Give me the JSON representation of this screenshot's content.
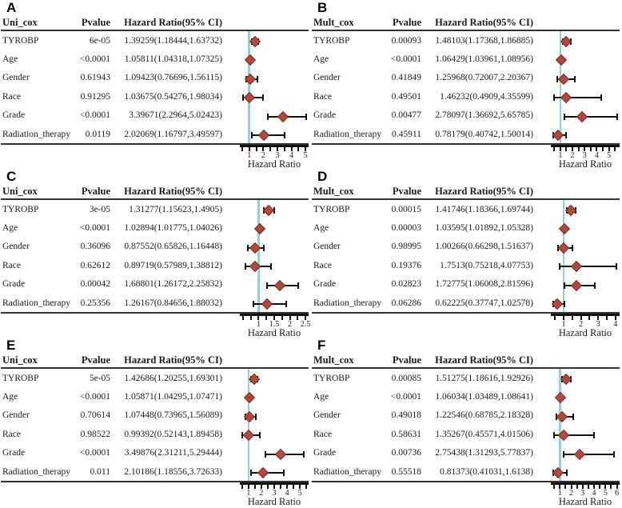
{
  "figure": {
    "axis_title": "Hazard Ratio",
    "colors": {
      "diamond_fill": "#b0493c",
      "diamond_border": "#7c2d26",
      "ci_line": "#111111",
      "reference_line": "#92d2d6",
      "rule": "#333333",
      "axis": "#111111"
    },
    "chart_data": [
      {
        "type": "forest",
        "panel": "A",
        "model_header": "Uni_cox",
        "pvalue_header": "Pvalue",
        "hr_header": "Hazard Ratio(95% CI)",
        "xlabel": "Hazard Ratio",
        "axis": {
          "min": 0.45,
          "max": 5.1,
          "tick_start": 0.5,
          "tick_end": 5.0,
          "tick_step": 0.5,
          "major_labels": [
            "1",
            "2",
            "3",
            "4",
            "5"
          ],
          "reference": 1
        },
        "rows": [
          {
            "variable": "TYROBP",
            "pvalue": "6e-05",
            "hr_text": "1.39259(1.18444,1.63732)",
            "hr": 1.39259,
            "low": 1.18444,
            "high": 1.63732
          },
          {
            "variable": "Age",
            "pvalue": "<0.0001",
            "hr_text": "1.05811(1.04318,1.07325)",
            "hr": 1.05811,
            "low": 1.04318,
            "high": 1.07325
          },
          {
            "variable": "Gender",
            "pvalue": "0.61943",
            "hr_text": "1.09423(0.76696,1.56115)",
            "hr": 1.09423,
            "low": 0.76696,
            "high": 1.56115
          },
          {
            "variable": "Race",
            "pvalue": "0.91295",
            "hr_text": "1.03675(0.54276,1.98034)",
            "hr": 1.03675,
            "low": 0.54276,
            "high": 1.98034
          },
          {
            "variable": "Grade",
            "pvalue": "<0.0001",
            "hr_text": "3.39671(2.2964,5.02423)",
            "hr": 3.39671,
            "low": 2.2964,
            "high": 5.02423
          },
          {
            "variable": "Radiation_therapy",
            "pvalue": "0.0119",
            "hr_text": "2.02069(1.16797,3.49597)",
            "hr": 2.02069,
            "low": 1.16797,
            "high": 3.49597
          }
        ]
      },
      {
        "type": "forest",
        "panel": "B",
        "model_header": "Mult_cox",
        "pvalue_header": "Pvalue",
        "hr_header": "Hazard Ratio(95% CI)",
        "xlabel": "Hazard Ratio",
        "axis": {
          "min": 0.35,
          "max": 5.75,
          "tick_start": 0.5,
          "tick_end": 5.5,
          "tick_step": 0.5,
          "major_labels": [
            "1",
            "2",
            "3",
            "4",
            "5"
          ],
          "reference": 1
        },
        "rows": [
          {
            "variable": "TYROBP",
            "pvalue": "0.00093",
            "hr_text": "1.48103(1.17368,1.86885)",
            "hr": 1.48103,
            "low": 1.17368,
            "high": 1.86885
          },
          {
            "variable": "Age",
            "pvalue": "<0.0001",
            "hr_text": "1.06429(1.03961,1.08956)",
            "hr": 1.06429,
            "low": 1.03961,
            "high": 1.08956
          },
          {
            "variable": "Gender",
            "pvalue": "0.41849",
            "hr_text": "1.25968(0.72007,2.20367)",
            "hr": 1.25968,
            "low": 0.72007,
            "high": 2.20367
          },
          {
            "variable": "Race",
            "pvalue": "0.49501",
            "hr_text": "1.46232(0.4909,4.35599)",
            "hr": 1.46232,
            "low": 0.4909,
            "high": 4.35599
          },
          {
            "variable": "Grade",
            "pvalue": "0.00477",
            "hr_text": "2.78097(1.36692,5.65785)",
            "hr": 2.78097,
            "low": 1.36692,
            "high": 5.65785
          },
          {
            "variable": "Radiation_therapy",
            "pvalue": "0.45911",
            "hr_text": "0.78179(0.40742,1.50014)",
            "hr": 0.78179,
            "low": 0.40742,
            "high": 1.50014
          }
        ]
      },
      {
        "type": "forest",
        "panel": "C",
        "model_header": "Uni_cox",
        "pvalue_header": "Pvalue",
        "hr_header": "Hazard Ratio(95% CI)",
        "xlabel": "Hazard Ratio",
        "axis": {
          "min": 0.45,
          "max": 2.55,
          "tick_start": 0.5,
          "tick_end": 2.5,
          "tick_step": 0.25,
          "major_labels": [
            "1",
            "1.5",
            "2",
            "2.5"
          ],
          "reference": 1
        },
        "rows": [
          {
            "variable": "TYROBP",
            "pvalue": "3e-05",
            "hr_text": "1.31277(1.15623,1.4905)",
            "hr": 1.31277,
            "low": 1.15623,
            "high": 1.4905
          },
          {
            "variable": "Age",
            "pvalue": "<0.0001",
            "hr_text": "1.02894(1.01775,1.04026)",
            "hr": 1.02894,
            "low": 1.01775,
            "high": 1.04026
          },
          {
            "variable": "Gender",
            "pvalue": "0.36096",
            "hr_text": "0.87552(0.65826,1.16448)",
            "hr": 0.87552,
            "low": 0.65826,
            "high": 1.16448
          },
          {
            "variable": "Race",
            "pvalue": "0.62612",
            "hr_text": "0.89719(0.57989,1.38812)",
            "hr": 0.89719,
            "low": 0.57989,
            "high": 1.38812
          },
          {
            "variable": "Grade",
            "pvalue": "0.00042",
            "hr_text": "1.68801(1.26172,2.25832)",
            "hr": 1.68801,
            "low": 1.26172,
            "high": 2.25832
          },
          {
            "variable": "Radiation_therapy",
            "pvalue": "0.25356",
            "hr_text": "1.26167(0.84656,1.88032)",
            "hr": 1.26167,
            "low": 0.84656,
            "high": 1.88032
          }
        ]
      },
      {
        "type": "forest",
        "panel": "D",
        "model_header": "Mult_cox",
        "pvalue_header": "Pvalue",
        "hr_header": "Hazard Ratio(95% CI)",
        "xlabel": "Hazard Ratio",
        "axis": {
          "min": 0.35,
          "max": 4.15,
          "tick_start": 0.5,
          "tick_end": 4.0,
          "tick_step": 0.5,
          "major_labels": [
            "1",
            "2",
            "3",
            "4"
          ],
          "reference": 1
        },
        "rows": [
          {
            "variable": "TYROBP",
            "pvalue": "0.00015",
            "hr_text": "1.41746(1.18366,1.69744)",
            "hr": 1.41746,
            "low": 1.18366,
            "high": 1.69744
          },
          {
            "variable": "Age",
            "pvalue": "0.00003",
            "hr_text": "1.03595(1.01892,1.05328)",
            "hr": 1.03595,
            "low": 1.01892,
            "high": 1.05328
          },
          {
            "variable": "Gender",
            "pvalue": "0.98995",
            "hr_text": "1.00266(0.66298,1.51637)",
            "hr": 1.00266,
            "low": 0.66298,
            "high": 1.51637
          },
          {
            "variable": "Race",
            "pvalue": "0.19376",
            "hr_text": "1.7513(0.75218,4.07753)",
            "hr": 1.7513,
            "low": 0.75218,
            "high": 4.07753
          },
          {
            "variable": "Grade",
            "pvalue": "0.02823",
            "hr_text": "1.72775(1.06008,2.81596)",
            "hr": 1.72775,
            "low": 1.06008,
            "high": 2.81596
          },
          {
            "variable": "Radiation_therapy",
            "pvalue": "0.06286",
            "hr_text": "0.62225(0.37747,1.02578)",
            "hr": 0.62225,
            "low": 0.37747,
            "high": 1.02578
          }
        ]
      },
      {
        "type": "forest",
        "panel": "E",
        "model_header": "Uni_cox",
        "pvalue_header": "Pvalue",
        "hr_header": "Hazard Ratio(95% CI)",
        "xlabel": "Hazard Ratio",
        "axis": {
          "min": 0.45,
          "max": 5.55,
          "tick_start": 0.5,
          "tick_end": 5.5,
          "tick_step": 0.5,
          "major_labels": [
            "1",
            "2",
            "3",
            "4",
            "5"
          ],
          "reference": 1
        },
        "rows": [
          {
            "variable": "TYROBP",
            "pvalue": "5e-05",
            "hr_text": "1.42686(1.20255,1.69301)",
            "hr": 1.42686,
            "low": 1.20255,
            "high": 1.69301
          },
          {
            "variable": "Age",
            "pvalue": "<0.0001",
            "hr_text": "1.05871(1.04295,1.07471)",
            "hr": 1.05871,
            "low": 1.04295,
            "high": 1.07471
          },
          {
            "variable": "Gender",
            "pvalue": "0.70614",
            "hr_text": "1.07448(0.73965,1.56089)",
            "hr": 1.07448,
            "low": 0.73965,
            "high": 1.56089
          },
          {
            "variable": "Race",
            "pvalue": "0.98522",
            "hr_text": "0.99392(0.52143,1.89458)",
            "hr": 0.99392,
            "low": 0.52143,
            "high": 1.89458
          },
          {
            "variable": "Grade",
            "pvalue": "<0.0001",
            "hr_text": "3.49876(2.31211,5.29444)",
            "hr": 3.49876,
            "low": 2.31211,
            "high": 5.29444
          },
          {
            "variable": "Radiation_therapy",
            "pvalue": "0.011",
            "hr_text": "2.10186(1.18556,3.72633)",
            "hr": 2.10186,
            "low": 1.18556,
            "high": 3.72633
          }
        ]
      },
      {
        "type": "forest",
        "panel": "F",
        "model_header": "Mult_cox",
        "pvalue_header": "Pvalue",
        "hr_header": "Hazard Ratio(95% CI)",
        "xlabel": "Hazard Ratio",
        "axis": {
          "min": 0.35,
          "max": 6.1,
          "tick_start": 0.5,
          "tick_end": 6.0,
          "tick_step": 0.5,
          "major_labels": [
            "1",
            "2",
            "3",
            "4",
            "5",
            "6"
          ],
          "reference": 1
        },
        "rows": [
          {
            "variable": "TYROBP",
            "pvalue": "0.00085",
            "hr_text": "1.51275(1.18616,1.92926)",
            "hr": 1.51275,
            "low": 1.18616,
            "high": 1.92926
          },
          {
            "variable": "Age",
            "pvalue": "<0.0001",
            "hr_text": "1.06034(1.03489,1.08641)",
            "hr": 1.06034,
            "low": 1.03489,
            "high": 1.08641
          },
          {
            "variable": "Gender",
            "pvalue": "0.49018",
            "hr_text": "1.22546(0.68785,2.18328)",
            "hr": 1.22546,
            "low": 0.68785,
            "high": 2.18328
          },
          {
            "variable": "Race",
            "pvalue": "0.58631",
            "hr_text": "1.35267(0.45571,4.01506)",
            "hr": 1.35267,
            "low": 0.45571,
            "high": 4.01506
          },
          {
            "variable": "Grade",
            "pvalue": "0.00736",
            "hr_text": "2.75438(1.31293,5.77837)",
            "hr": 2.75438,
            "low": 1.31293,
            "high": 5.77837
          },
          {
            "variable": "Radiation_therapy",
            "pvalue": "0.55518",
            "hr_text": "0.81373(0.41031,1.6138)",
            "hr": 0.81373,
            "low": 0.41031,
            "high": 1.6138
          }
        ]
      }
    ]
  }
}
